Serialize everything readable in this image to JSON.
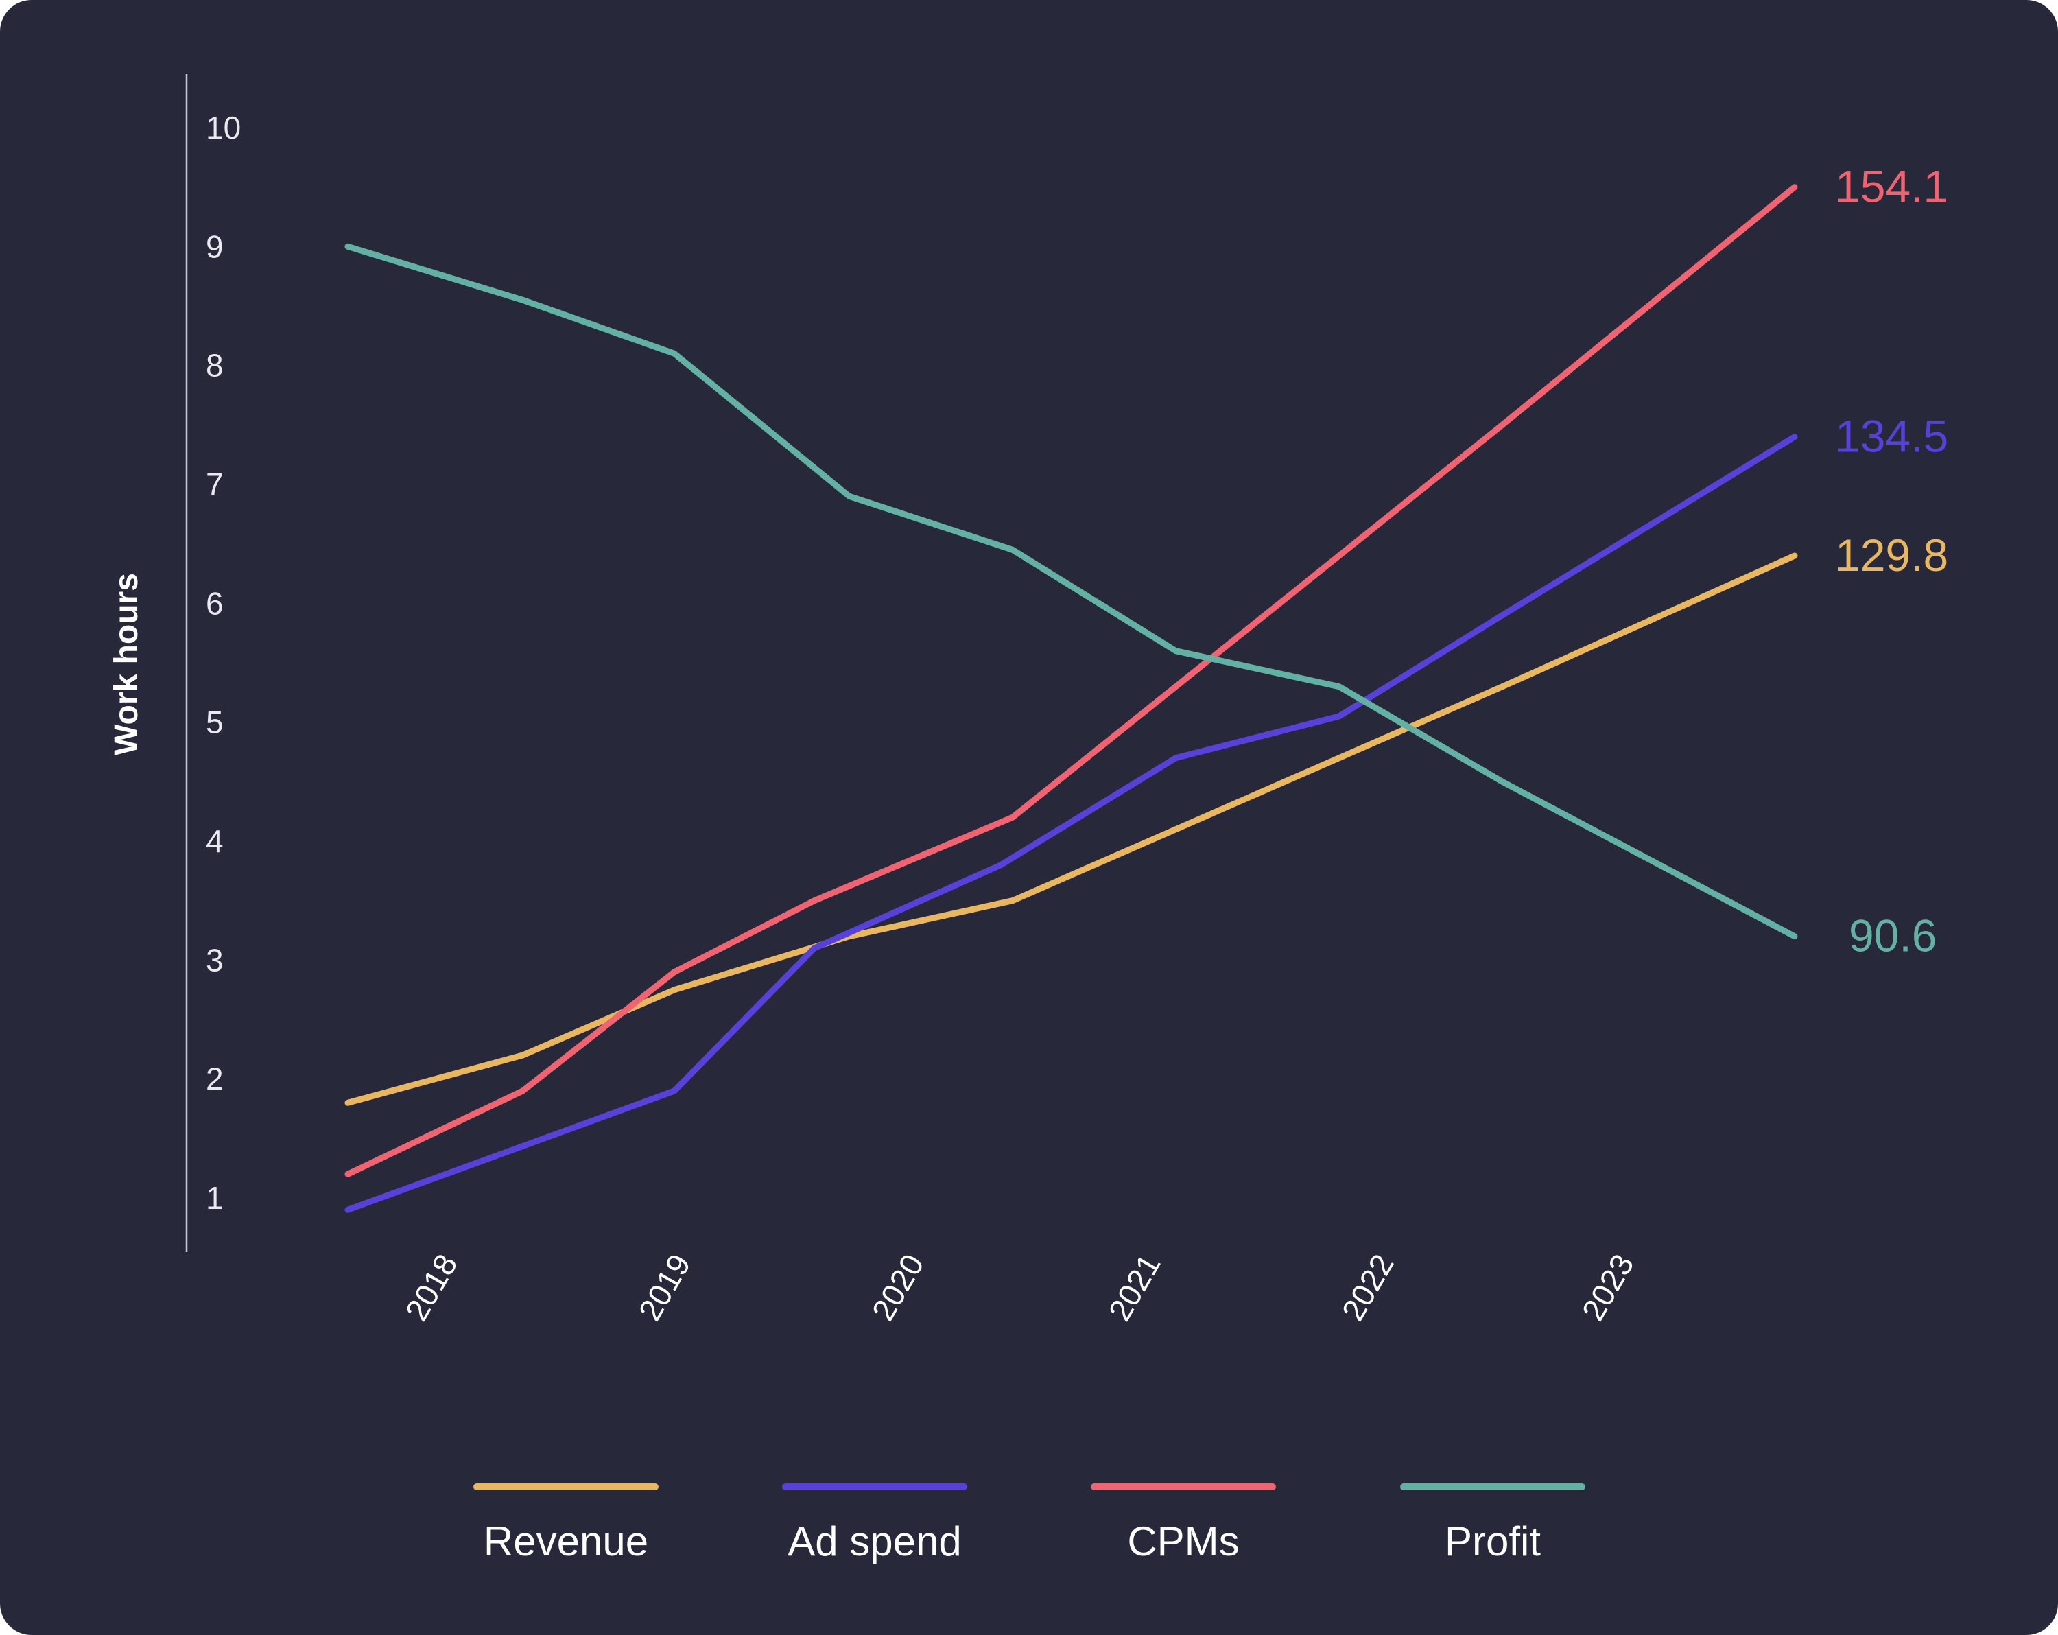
{
  "chart_data": {
    "type": "line",
    "title": "",
    "xlabel": "",
    "ylabel": "Work hours",
    "categories": [
      "2018",
      "2019",
      "2020",
      "2021",
      "2022",
      "2023"
    ],
    "y_ticks": [
      1,
      2,
      3,
      4,
      5,
      6,
      7,
      8,
      9,
      10
    ],
    "ylim": [
      0.6,
      10.4
    ],
    "grid": false,
    "legend": "bottom",
    "series": [
      {
        "name": "Revenue",
        "color": "#e8b760",
        "x": [
          2017.55,
          2018.3,
          2018.95,
          2019.7,
          2020.4,
          2021.1,
          2021.8,
          2022.5,
          2023.55
        ],
        "y": [
          1.8,
          2.2,
          2.75,
          3.2,
          3.5,
          4.1,
          4.7,
          5.3,
          6.4
        ],
        "end_label": "129.8"
      },
      {
        "name": "Ad spend",
        "color": "#5841d8",
        "x": [
          2017.55,
          2018.25,
          2018.95,
          2019.55,
          2020.35,
          2021.1,
          2021.8,
          2022.5,
          2023.55
        ],
        "y": [
          0.9,
          1.4,
          1.9,
          3.1,
          3.8,
          4.7,
          5.05,
          5.9,
          7.4
        ],
        "end_label": "134.5"
      },
      {
        "name": "CPMs",
        "color": "#ef6470",
        "x": [
          2017.55,
          2018.3,
          2018.95,
          2019.55,
          2020.4,
          2021.1,
          2021.8,
          2022.5,
          2023.55
        ],
        "y": [
          1.2,
          1.9,
          2.9,
          3.5,
          4.2,
          5.3,
          6.4,
          7.5,
          9.5
        ],
        "end_label": "154.1"
      },
      {
        "name": "Profit",
        "color": "#63b1a5",
        "x": [
          2017.55,
          2018.3,
          2018.95,
          2019.7,
          2020.4,
          2021.1,
          2021.8,
          2022.5,
          2023.55
        ],
        "y": [
          9.0,
          8.55,
          8.1,
          6.9,
          6.45,
          5.6,
          5.3,
          4.5,
          3.2
        ],
        "end_label": "90.6"
      }
    ]
  }
}
